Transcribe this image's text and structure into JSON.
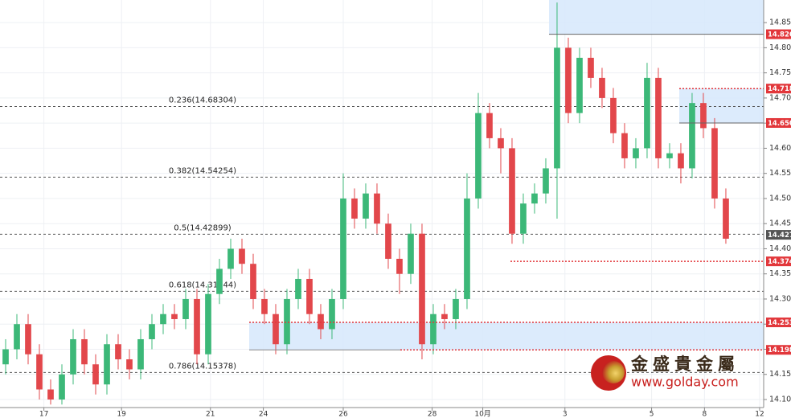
{
  "chart_data": {
    "type": "candlestick",
    "open": [
      14.17,
      14.2,
      14.25,
      14.19,
      14.12,
      14.1,
      14.15,
      14.22,
      14.17,
      14.13,
      14.21,
      14.18,
      14.16,
      14.22,
      14.25,
      14.27,
      14.26,
      14.3,
      14.19,
      14.31,
      14.36,
      14.4,
      14.37,
      14.3,
      14.27,
      14.21,
      14.3,
      14.34,
      14.27,
      14.24,
      14.3,
      14.5,
      14.46,
      14.51,
      14.45,
      14.38,
      14.35,
      14.43,
      14.21,
      14.27,
      14.26,
      14.3,
      14.5,
      14.67,
      14.62,
      14.6,
      14.43,
      14.49,
      14.51,
      14.56,
      14.8,
      14.67,
      14.78,
      14.74,
      14.7,
      14.63,
      14.58,
      14.6,
      14.74,
      14.58,
      14.59,
      14.56,
      14.69,
      14.64,
      14.5
    ],
    "high": [
      14.22,
      14.27,
      14.27,
      14.21,
      14.14,
      14.17,
      14.24,
      14.24,
      14.19,
      14.23,
      14.23,
      14.2,
      14.24,
      14.27,
      14.29,
      14.29,
      14.32,
      14.32,
      14.33,
      14.38,
      14.42,
      14.42,
      14.39,
      14.32,
      14.29,
      14.32,
      14.36,
      14.36,
      14.29,
      14.32,
      14.55,
      14.52,
      14.53,
      14.53,
      14.47,
      14.4,
      14.45,
      14.45,
      14.29,
      14.29,
      14.32,
      14.55,
      14.71,
      14.69,
      14.64,
      14.62,
      14.51,
      14.53,
      14.58,
      14.89,
      14.82,
      14.8,
      14.8,
      14.76,
      14.72,
      14.65,
      14.62,
      14.77,
      14.76,
      14.61,
      14.61,
      14.71,
      14.71,
      14.66,
      14.52
    ],
    "low": [
      14.15,
      14.18,
      14.17,
      14.1,
      14.09,
      14.09,
      14.13,
      14.15,
      14.11,
      14.11,
      14.16,
      14.14,
      14.14,
      14.2,
      14.23,
      14.24,
      14.24,
      14.17,
      14.17,
      14.29,
      14.34,
      14.35,
      14.28,
      14.25,
      14.19,
      14.19,
      14.28,
      14.25,
      14.22,
      14.22,
      14.28,
      14.44,
      14.44,
      14.43,
      14.36,
      14.31,
      14.33,
      14.18,
      14.19,
      14.24,
      14.24,
      14.28,
      14.48,
      14.6,
      14.55,
      14.41,
      14.41,
      14.47,
      14.49,
      14.46,
      14.65,
      14.65,
      14.72,
      14.68,
      14.61,
      14.56,
      14.56,
      14.58,
      14.56,
      14.56,
      14.53,
      14.54,
      14.62,
      14.48,
      14.41
    ],
    "close": [
      14.2,
      14.25,
      14.19,
      14.12,
      14.1,
      14.15,
      14.22,
      14.17,
      14.13,
      14.21,
      14.18,
      14.16,
      14.22,
      14.25,
      14.27,
      14.26,
      14.3,
      14.19,
      14.31,
      14.36,
      14.4,
      14.37,
      14.3,
      14.27,
      14.21,
      14.3,
      14.34,
      14.27,
      14.24,
      14.3,
      14.5,
      14.46,
      14.51,
      14.45,
      14.38,
      14.35,
      14.43,
      14.21,
      14.27,
      14.26,
      14.3,
      14.5,
      14.67,
      14.62,
      14.6,
      14.43,
      14.49,
      14.51,
      14.56,
      14.8,
      14.67,
      14.78,
      14.74,
      14.7,
      14.63,
      14.58,
      14.6,
      14.74,
      14.58,
      14.59,
      14.56,
      14.69,
      14.64,
      14.5,
      14.42
    ],
    "up_color": "#3cb878",
    "down_color": "#e2474b",
    "xlim": [
      -0.5,
      67.36
    ],
    "ylim": [
      14.084,
      14.895
    ],
    "xticks": [
      {
        "value": 3.4,
        "label": "17"
      },
      {
        "value": 10.3,
        "label": "19"
      },
      {
        "value": 18.2,
        "label": "21"
      },
      {
        "value": 22.9,
        "label": "24"
      },
      {
        "value": 30,
        "label": "26"
      },
      {
        "value": 37.9,
        "label": "28"
      },
      {
        "value": 42.4,
        "label": "10月"
      },
      {
        "value": 49.7,
        "label": "3"
      },
      {
        "value": 57.4,
        "label": "5"
      },
      {
        "value": 62.1,
        "label": "8"
      },
      {
        "value": 67,
        "label": "12"
      }
    ],
    "yticks": [
      {
        "value": 14.1,
        "label": "14.100"
      },
      {
        "value": 14.15,
        "label": "14.150"
      },
      {
        "value": 14.2,
        "label": "14.200"
      },
      {
        "value": 14.25,
        "label": "14.250"
      },
      {
        "value": 14.3,
        "label": "14.300"
      },
      {
        "value": 14.35,
        "label": "14.350"
      },
      {
        "value": 14.4,
        "label": "14.400"
      },
      {
        "value": 14.45,
        "label": "14.450"
      },
      {
        "value": 14.5,
        "label": "14.500"
      },
      {
        "value": 14.55,
        "label": "14.550"
      },
      {
        "value": 14.6,
        "label": "14.600"
      },
      {
        "value": 14.65,
        "label": "14.650"
      },
      {
        "value": 14.7,
        "label": "14.700"
      },
      {
        "value": 14.75,
        "label": "14.750"
      },
      {
        "value": 14.8,
        "label": "14.800"
      },
      {
        "value": 14.85,
        "label": "14.850"
      }
    ],
    "grid": true,
    "fib_levels": [
      {
        "value": 14.68304,
        "label": "0.236(14.68304)"
      },
      {
        "value": 14.54254,
        "label": "0.382(14.54254)"
      },
      {
        "value": 14.42899,
        "label": "0.5(14.42899)"
      },
      {
        "value": 14.31544,
        "label": "0.618(14.31544)"
      },
      {
        "value": 14.15378,
        "label": "0.786(14.15378)"
      }
    ],
    "levels": [
      14.8269,
      14.7187,
      14.6503,
      14.4278,
      14.3749,
      14.2535,
      14.1988
    ],
    "level_colors": [
      "#e2373b",
      "#e2373b",
      "#e2373b",
      "#555555",
      "#e2373b",
      "#e2373b",
      "#e2373b"
    ],
    "zone_color": "#d6e8fb"
  },
  "logo": {
    "name": "金盛貴金屬",
    "url": "www.golday.com"
  }
}
